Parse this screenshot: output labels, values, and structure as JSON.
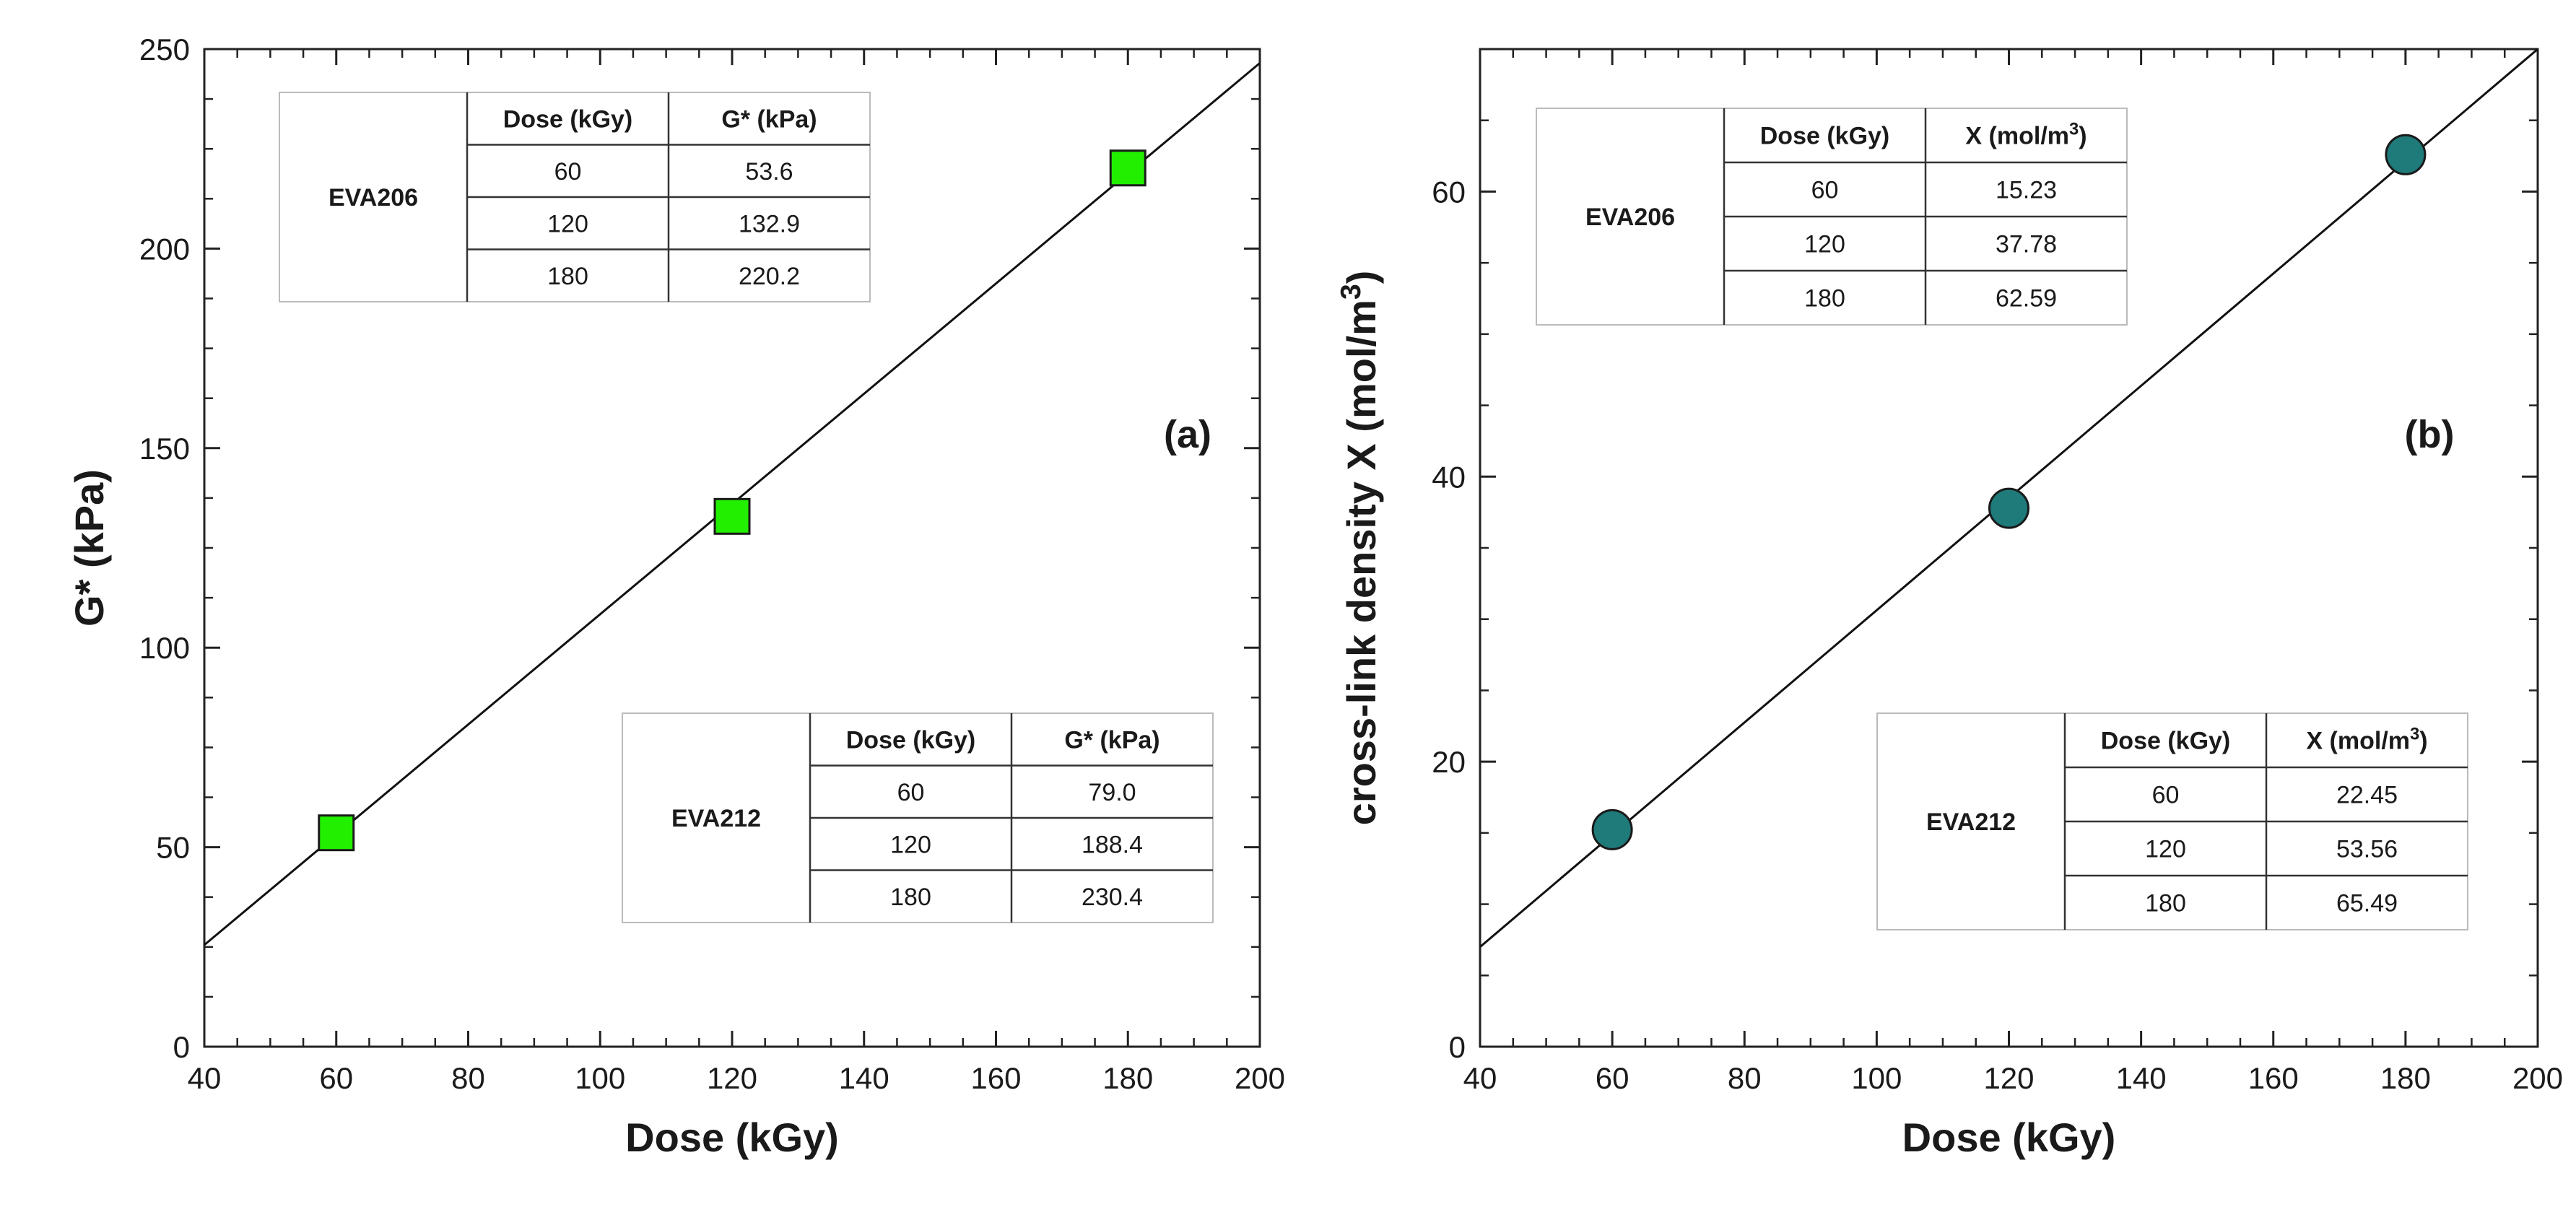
{
  "chart_data": [
    {
      "type": "scatter",
      "panel_label": "(a)",
      "xlabel": "Dose (kGy)",
      "ylabel": "G* (kPa)",
      "xlim": [
        40,
        200
      ],
      "ylim": [
        0,
        250
      ],
      "xticks": [
        40,
        60,
        80,
        100,
        120,
        140,
        160,
        180,
        200
      ],
      "yticks": [
        0,
        50,
        100,
        150,
        200,
        250
      ],
      "marker": "square",
      "marker_color": "#22ee00",
      "series": [
        {
          "name": "EVA206",
          "x": [
            60,
            120,
            180
          ],
          "y": [
            53.6,
            132.9,
            220.2
          ]
        }
      ],
      "fit_line": {
        "x": [
          40,
          200
        ],
        "y": [
          25.5,
          246.5
        ]
      },
      "tables": [
        {
          "position": "top-left",
          "row_label": "EVA206",
          "headers": [
            "Dose (kGy)",
            "G* (kPa)"
          ],
          "rows": [
            [
              "60",
              "53.6"
            ],
            [
              "120",
              "132.9"
            ],
            [
              "180",
              "220.2"
            ]
          ]
        },
        {
          "position": "bottom-right",
          "row_label": "EVA212",
          "headers": [
            "Dose (kGy)",
            "G* (kPa)"
          ],
          "rows": [
            [
              "60",
              "79.0"
            ],
            [
              "120",
              "188.4"
            ],
            [
              "180",
              "230.4"
            ]
          ]
        }
      ]
    },
    {
      "type": "scatter",
      "panel_label": "(b)",
      "xlabel": "Dose (kGy)",
      "ylabel": "cross-link density X (mol/m3)",
      "ylabel_parts": [
        "cross-link density X (mol/m",
        "3",
        ")"
      ],
      "xlim": [
        40,
        200
      ],
      "ylim": [
        0,
        70
      ],
      "xticks": [
        40,
        60,
        80,
        100,
        120,
        140,
        160,
        180,
        200
      ],
      "yticks": [
        0,
        20,
        40,
        60
      ],
      "marker": "circle",
      "marker_color": "#1f7a7a",
      "series": [
        {
          "name": "EVA206",
          "x": [
            60,
            120,
            180
          ],
          "y": [
            15.23,
            37.78,
            62.59
          ]
        }
      ],
      "fit_line": {
        "x": [
          40,
          200
        ],
        "y": [
          7.0,
          70.0
        ]
      },
      "tables": [
        {
          "position": "top-left",
          "row_label": "EVA206",
          "headers": [
            "Dose (kGy)",
            "X (mol/m3)"
          ],
          "header_parts": [
            [
              "Dose (kGy)"
            ],
            [
              "X (mol/m",
              "3",
              ")"
            ]
          ],
          "rows": [
            [
              "60",
              "15.23"
            ],
            [
              "120",
              "37.78"
            ],
            [
              "180",
              "62.59"
            ]
          ]
        },
        {
          "position": "bottom-right",
          "row_label": "EVA212",
          "headers": [
            "Dose (kGy)",
            "X (mol/m3)"
          ],
          "header_parts": [
            [
              "Dose (kGy)"
            ],
            [
              "X (mol/m",
              "3",
              ")"
            ]
          ],
          "rows": [
            [
              "60",
              "22.45"
            ],
            [
              "120",
              "53.56"
            ],
            [
              "180",
              "65.49"
            ]
          ]
        }
      ]
    }
  ]
}
